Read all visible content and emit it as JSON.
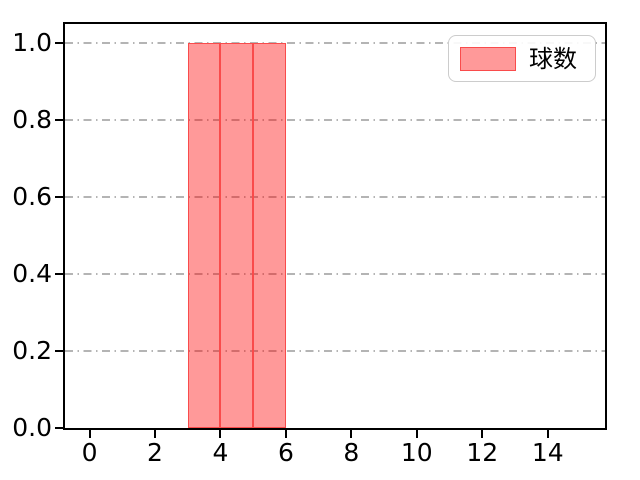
{
  "chart_data": {
    "type": "bar",
    "title": "",
    "xlabel": "",
    "ylabel": "",
    "xlim": [
      -0.75,
      15.75
    ],
    "ylim": [
      0,
      1.05
    ],
    "grid": {
      "axis": "y",
      "linestyle": "dashdot",
      "color": "#b4b4b4"
    },
    "bars": [
      {
        "x0": 3,
        "x1": 4,
        "height": 1.0
      },
      {
        "x0": 4,
        "x1": 5,
        "height": 1.0
      },
      {
        "x0": 5,
        "x1": 6,
        "height": 1.0
      }
    ],
    "series": [
      {
        "name": "球数",
        "bin_edges": [
          3,
          4,
          5,
          6
        ],
        "counts": [
          1,
          1,
          1
        ]
      }
    ],
    "xticks": [
      {
        "v": 0,
        "label": "0"
      },
      {
        "v": 2,
        "label": "2"
      },
      {
        "v": 4,
        "label": "4"
      },
      {
        "v": 6,
        "label": "6"
      },
      {
        "v": 8,
        "label": "8"
      },
      {
        "v": 10,
        "label": "10"
      },
      {
        "v": 12,
        "label": "12"
      },
      {
        "v": 14,
        "label": "14"
      }
    ],
    "yticks": [
      {
        "v": 0.0,
        "label": "0.0"
      },
      {
        "v": 0.2,
        "label": "0.2"
      },
      {
        "v": 0.4,
        "label": "0.4"
      },
      {
        "v": 0.6,
        "label": "0.6"
      },
      {
        "v": 0.8,
        "label": "0.8"
      },
      {
        "v": 1.0,
        "label": "1.0"
      }
    ],
    "legend": {
      "position": "upper-right",
      "entries": [
        {
          "label": "球数",
          "fill": "rgba(255,0,0,0.4)",
          "edge": "#f94b4b"
        }
      ]
    },
    "colors": {
      "bar_fill": "rgba(255,0,0,0.4)",
      "bar_edge": "#f94b4b",
      "spine": "#000000",
      "grid": "#b4b4b4",
      "legend_border": "#cccccc",
      "text": "#000000"
    }
  }
}
